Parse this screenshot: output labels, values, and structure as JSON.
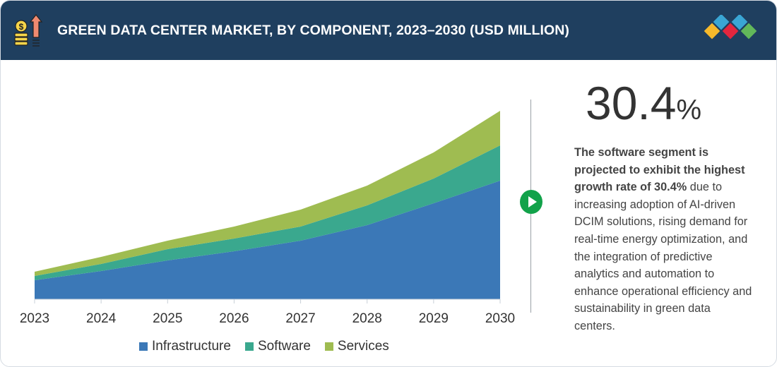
{
  "header": {
    "title": "GREEN DATA CENTER MARKET, BY COMPONENT, 2023–2030 (USD MILLION)",
    "icon": "coins-growth-arrow-icon",
    "logo": "diamond-cluster-logo",
    "background": "#1f3f5f"
  },
  "highlight": {
    "value": "30.4",
    "unit": "%",
    "description_bold": "The software segment is projected to exhibit the highest growth rate of 30.4%",
    "description_rest": " due to increasing adoption of AI-driven DCIM solutions, rising demand for real-time energy optimization, and the integration of predictive analytics and automation to enhance operational efficiency and sustainability in green data centers."
  },
  "chart_data": {
    "type": "area",
    "stacked": true,
    "title": "",
    "xlabel": "",
    "ylabel": "",
    "grid": false,
    "y_axis_shown": false,
    "legend_position": "bottom",
    "categories": [
      "2023",
      "2024",
      "2025",
      "2026",
      "2027",
      "2028",
      "2029",
      "2030"
    ],
    "series": [
      {
        "name": "Infrastructure",
        "color": "#3b78b7",
        "values": [
          27,
          40,
          55,
          68,
          83,
          105,
          136,
          168
        ]
      },
      {
        "name": "Software",
        "color": "#3aa88e",
        "values": [
          6,
          10,
          16,
          18,
          20,
          28,
          35,
          50
        ]
      },
      {
        "name": "Services",
        "color": "#9fbc51",
        "values": [
          6,
          10,
          12,
          17,
          24,
          28,
          37,
          49
        ]
      }
    ]
  }
}
